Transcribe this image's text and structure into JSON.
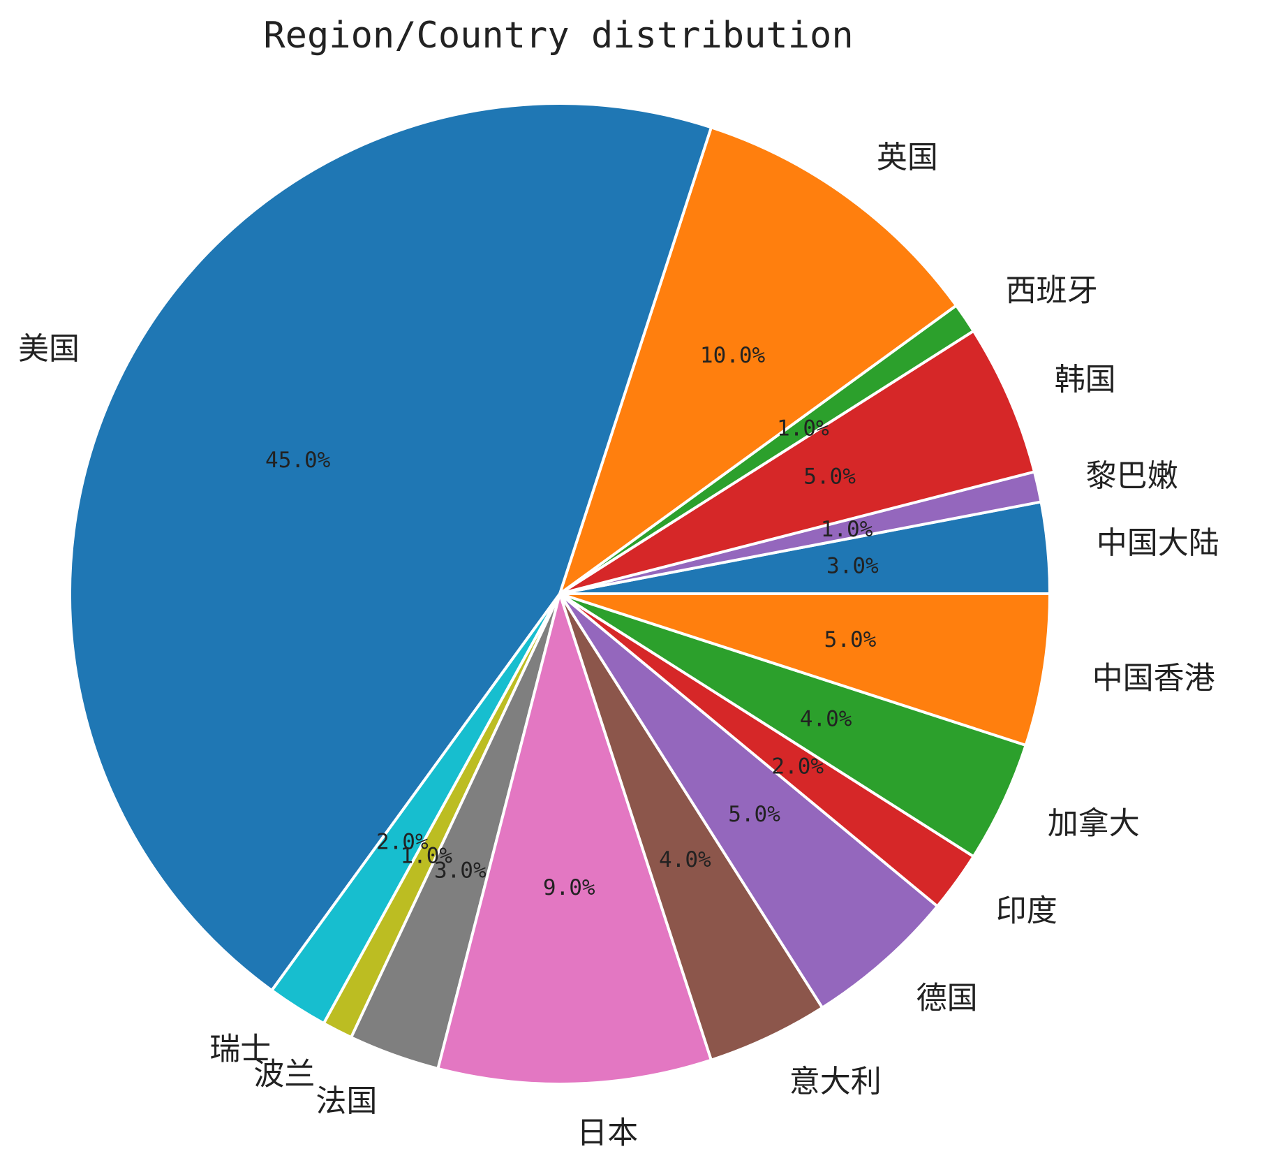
{
  "chart_data": {
    "type": "pie",
    "title": "Region/Country distribution",
    "start_angle_deg": 0,
    "direction": "counterclockwise",
    "slices": [
      {
        "label": "中国大陆",
        "value": 3.0,
        "pct_text": "3.0%",
        "color": "#1f77b4"
      },
      {
        "label": "黎巴嫩",
        "value": 1.0,
        "pct_text": "1.0%",
        "color": "#9467bd"
      },
      {
        "label": "韩国",
        "value": 5.0,
        "pct_text": "5.0%",
        "color": "#d62728"
      },
      {
        "label": "西班牙",
        "value": 1.0,
        "pct_text": "1.0%",
        "color": "#2ca02c"
      },
      {
        "label": "英国",
        "value": 10.0,
        "pct_text": "10.0%",
        "color": "#ff7f0e"
      },
      {
        "label": "美国",
        "value": 45.0,
        "pct_text": "45.0%",
        "color": "#1f77b4"
      },
      {
        "label": "瑞士",
        "value": 2.0,
        "pct_text": "2.0%",
        "color": "#17becf"
      },
      {
        "label": "波兰",
        "value": 1.0,
        "pct_text": "1.0%",
        "color": "#bcbd22"
      },
      {
        "label": "法国",
        "value": 3.0,
        "pct_text": "3.0%",
        "color": "#7f7f7f"
      },
      {
        "label": "日本",
        "value": 9.0,
        "pct_text": "9.0%",
        "color": "#e377c2"
      },
      {
        "label": "意大利",
        "value": 4.0,
        "pct_text": "4.0%",
        "color": "#8c564b"
      },
      {
        "label": "德国",
        "value": 5.0,
        "pct_text": "5.0%",
        "color": "#9467bd"
      },
      {
        "label": "印度",
        "value": 2.0,
        "pct_text": "2.0%",
        "color": "#d62728"
      },
      {
        "label": "加拿大",
        "value": 4.0,
        "pct_text": "4.0%",
        "color": "#2ca02c"
      },
      {
        "label": "中国香港",
        "value": 5.0,
        "pct_text": "5.0%",
        "color": "#ff7f0e"
      }
    ]
  }
}
